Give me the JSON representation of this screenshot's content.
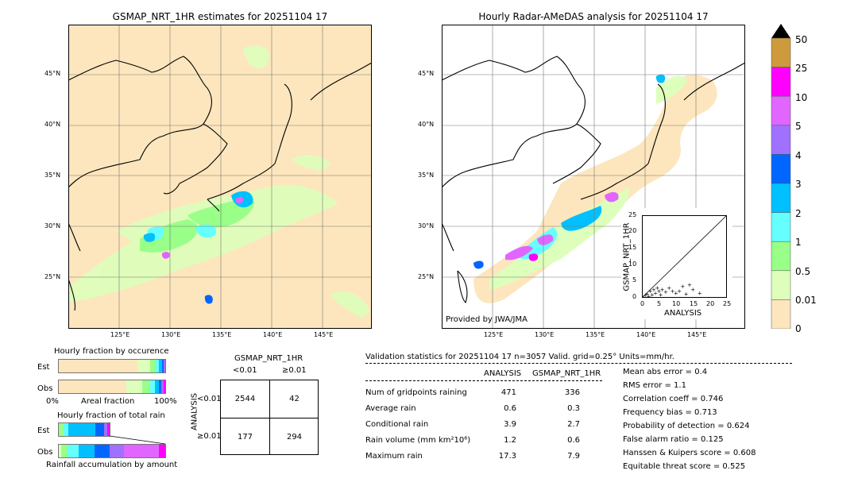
{
  "left_map": {
    "title": "GSMAP_NRT_1HR estimates for 20251104 17",
    "lat_labels": [
      "45°N",
      "40°N",
      "35°N",
      "30°N",
      "25°N"
    ],
    "lon_labels": [
      "125°E",
      "130°E",
      "135°E",
      "140°E",
      "145°E"
    ]
  },
  "right_map": {
    "title": "Hourly Radar-AMeDAS analysis for 20251104 17",
    "lat_labels": [
      "45°N",
      "40°N",
      "35°N",
      "30°N",
      "25°N"
    ],
    "lon_labels": [
      "125°E",
      "130°E",
      "135°E",
      "140°E",
      "145°E"
    ],
    "credit": "Provided by JWA/JMA"
  },
  "colorbar": {
    "labels": [
      "50",
      "25",
      "10",
      "5",
      "4",
      "3",
      "2",
      "1",
      "0.5",
      "0.01",
      "0"
    ],
    "colors": [
      "#cd9a3c",
      "#ff00ff",
      "#e066ff",
      "#a070ff",
      "#0066ff",
      "#00c0ff",
      "#66ffff",
      "#99ff88",
      "#ddffbb",
      "#fde6bd"
    ]
  },
  "scatter": {
    "ylabel": "GSMAP_NRT_1HR",
    "xlabel": "ANALYSIS",
    "ticks": [
      "0",
      "5",
      "10",
      "15",
      "20",
      "25"
    ]
  },
  "occurrence": {
    "title": "Hourly fraction by occurence",
    "row_labels": [
      "Est",
      "Obs"
    ],
    "axis_left": "0%",
    "axis_mid": "Areal fraction",
    "axis_right": "100%"
  },
  "total_rain": {
    "title": "Hourly fraction of total rain",
    "row_labels": [
      "Est",
      "Obs"
    ],
    "axis_label": "Rainfall accumulation by amount"
  },
  "contingency": {
    "title": "GSMAP_NRT_1HR",
    "col_labels": [
      "<0.01",
      "≥0.01"
    ],
    "row_labels": [
      "<0.01",
      "≥0.01"
    ],
    "side_label": "ANALYSIS",
    "cells": [
      [
        "2544",
        "42"
      ],
      [
        "177",
        "294"
      ]
    ]
  },
  "validation": {
    "header": "Validation statistics for 20251104 17  n=3057 Valid. grid=0.25° Units=mm/hr.",
    "col_headers": [
      "ANALYSIS",
      "GSMAP_NRT_1HR"
    ],
    "rows": [
      {
        "label": "Num of gridpoints raining",
        "analysis": "471",
        "gsmap": "336"
      },
      {
        "label": "Average rain",
        "analysis": "0.6",
        "gsmap": "0.3"
      },
      {
        "label": "Conditional rain",
        "analysis": "3.9",
        "gsmap": "2.7"
      },
      {
        "label": "Rain volume (mm km²10⁶)",
        "analysis": "1.2",
        "gsmap": "0.6"
      },
      {
        "label": "Maximum rain",
        "analysis": "17.3",
        "gsmap": "7.9"
      }
    ],
    "scores": [
      "Mean abs error =    0.4",
      "RMS error =    1.1",
      "Correlation coeff =  0.746",
      "Frequency bias =  0.713",
      "Probability of detection =  0.624",
      "False alarm ratio =  0.125",
      "Hanssen & Kuipers score =  0.608",
      "Equitable threat score =  0.525"
    ]
  },
  "chart_data": [
    {
      "type": "heatmap",
      "title": "GSMAP_NRT_1HR estimates for 20251104 17",
      "units": "mm/hr"
    },
    {
      "type": "heatmap",
      "title": "Hourly Radar-AMeDAS analysis for 20251104 17",
      "units": "mm/hr"
    },
    {
      "type": "scatter",
      "xlabel": "ANALYSIS",
      "ylabel": "GSMAP_NRT_1HR",
      "xlim": [
        0,
        25
      ],
      "ylim": [
        0,
        25
      ],
      "points": [
        [
          0.5,
          0.3
        ],
        [
          1,
          0.8
        ],
        [
          1.5,
          1.2
        ],
        [
          2,
          0.5
        ],
        [
          2.5,
          2
        ],
        [
          3,
          1
        ],
        [
          3.5,
          2.5
        ],
        [
          4,
          1.5
        ],
        [
          4.5,
          3
        ],
        [
          5,
          2
        ],
        [
          5.5,
          1
        ],
        [
          6,
          2.5
        ],
        [
          7,
          1.8
        ],
        [
          8,
          3
        ],
        [
          9,
          2
        ],
        [
          10,
          1.5
        ],
        [
          11,
          2
        ],
        [
          12,
          3.5
        ],
        [
          13,
          1.2
        ],
        [
          14,
          4
        ],
        [
          15,
          2.5
        ],
        [
          17,
          1.5
        ]
      ]
    },
    {
      "type": "table",
      "title": "GSMAP_NRT_1HR",
      "rows": [
        "<0.01",
        "≥0.01"
      ],
      "cols": [
        "<0.01",
        "≥0.01"
      ],
      "values": [
        [
          2544,
          42
        ],
        [
          177,
          294
        ]
      ]
    }
  ]
}
